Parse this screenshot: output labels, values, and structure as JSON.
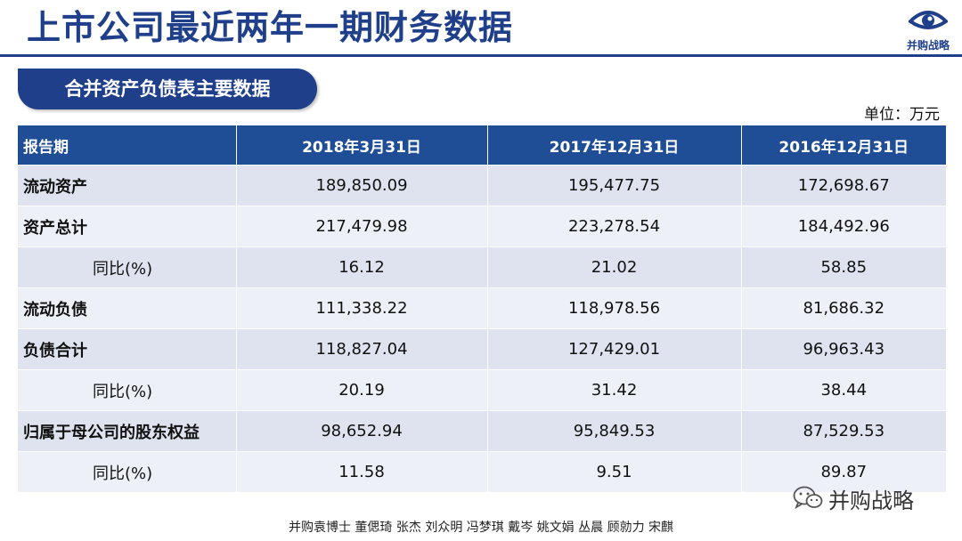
{
  "header": {
    "title": "上市公司最近两年一期财务数据",
    "logo_text": "并购战略",
    "logo_icon": "eye-icon"
  },
  "section": {
    "title": "合并资产负债表主要数据"
  },
  "unit": "单位：万元",
  "table": {
    "headers": [
      "报告期",
      "2018年3月31日",
      "2017年12月31日",
      "2016年12月31日"
    ],
    "rows": [
      {
        "label": "流动资产",
        "values": [
          "189,850.09",
          "195,477.75",
          "172,698.67"
        ]
      },
      {
        "label": "资产总计",
        "values": [
          "217,479.98",
          "223,278.54",
          "184,492.96"
        ]
      },
      {
        "label": "同比(%)",
        "values": [
          "16.12",
          "21.02",
          "58.85"
        ]
      },
      {
        "label": "流动负债",
        "values": [
          "111,338.22",
          "118,978.56",
          "81,686.32"
        ]
      },
      {
        "label": "负债合计",
        "values": [
          "118,827.04",
          "127,429.01",
          "96,963.43"
        ]
      },
      {
        "label": "同比(%)",
        "values": [
          "20.19",
          "31.42",
          "38.44"
        ]
      },
      {
        "label": "归属于母公司的股东权益",
        "values": [
          "98,652.94",
          "95,849.53",
          "87,529.53"
        ]
      },
      {
        "label": "同比(%)",
        "values": [
          "11.58",
          "9.51",
          "89.87"
        ]
      }
    ]
  },
  "watermark": {
    "text": "并购战略",
    "icon": "wechat-icon"
  },
  "footer": {
    "authors": "并购袁博士 董偲琦 张杰 刘众明 冯梦琪 戴岑 姚文娟  丛晨 顾勍力 宋麒"
  },
  "colors": {
    "brand_blue": "#1f3f8a",
    "header_blue": "#1f4e96",
    "row_dark": "#dfe3ef",
    "row_light": "#edf0f6"
  }
}
